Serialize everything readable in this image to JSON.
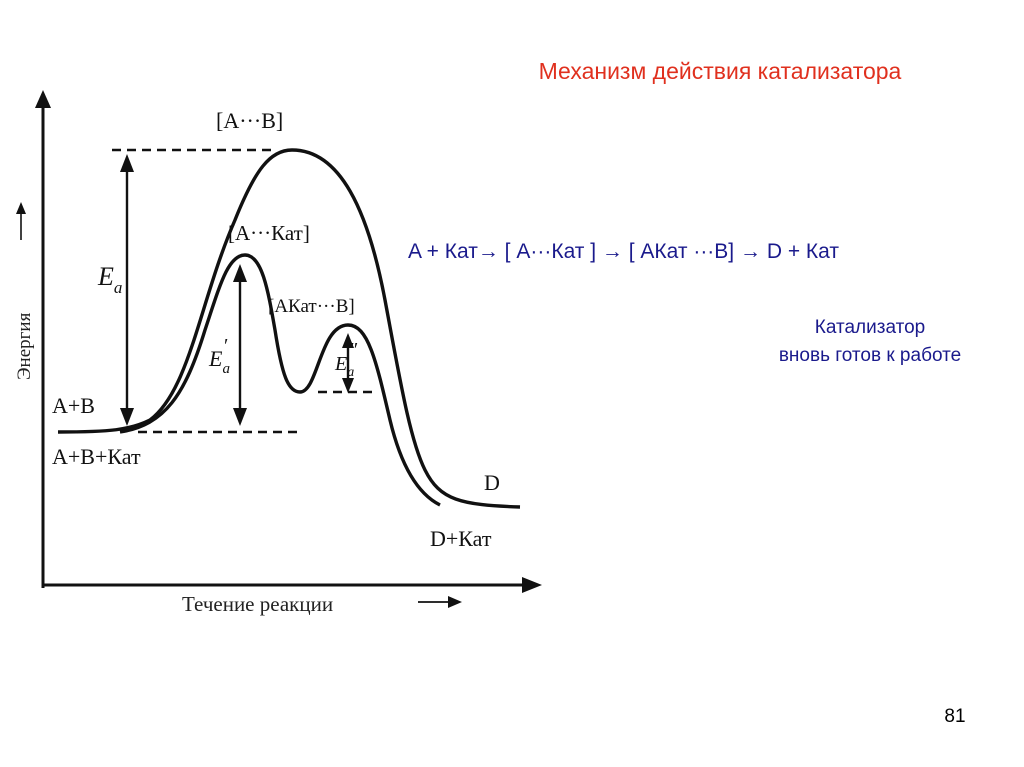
{
  "slide": {
    "title": "Механизм действия катализатора",
    "equation": "A + Кат→ [ A···Кат ] → [ AКат ···B] → D + Кат",
    "note_line1": "Катализатор",
    "note_line2": "вновь готов к работе",
    "page_number": "81"
  },
  "diagram": {
    "y_axis_label": "Энергия",
    "x_axis_label": "Течение реакции",
    "labels": {
      "transition_uncatalyzed": "[A···B]",
      "transition_catalyzed_1": "[A···Кат]",
      "transition_catalyzed_2": "[AКат···B]",
      "reactants": "A+B",
      "reactants_with_catalyst": "A+B+Кат",
      "product": "D",
      "product_with_catalyst": "D+Кат",
      "ea_main": "E",
      "ea_main_sub": "a",
      "ea_prime": "E",
      "ea_prime_sub": "a",
      "ea_prime_mark": "′",
      "ea_double": "E",
      "ea_double_sub": "a",
      "ea_double_mark": "″"
    },
    "colors": {
      "title": "#e0301e",
      "text_blue": "#1a1a8c",
      "diagram": "#111111"
    }
  }
}
